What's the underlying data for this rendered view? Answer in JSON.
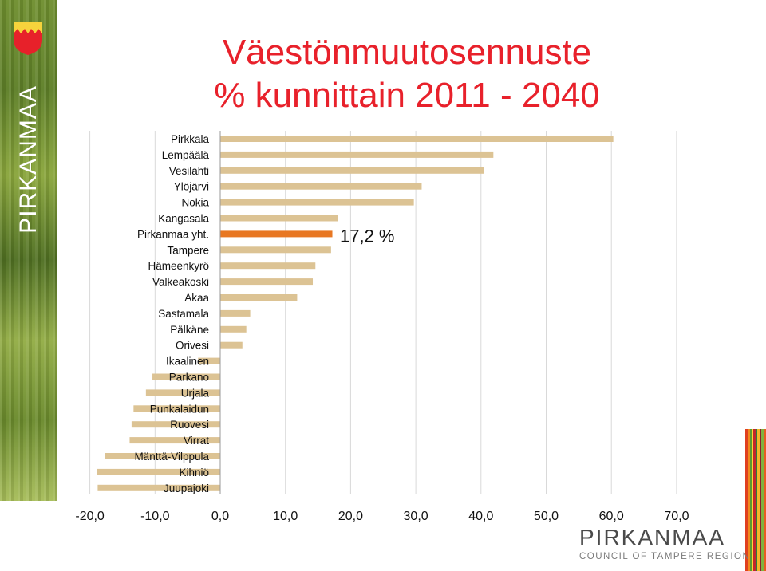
{
  "title_line1": "Väestönmuutosennuste",
  "title_line2": "% kunnittain 2011 - 2040",
  "vertical_brand": "PIRKANMAA",
  "logo": {
    "main": "PIRKANMAA",
    "sub": "COUNCIL OF TAMPERE REGION"
  },
  "colors": {
    "title": "#e8212b",
    "bar": "#dcc394",
    "highlight_bar": "#e87722",
    "grid": "#d9d9d9"
  },
  "icons": {
    "coat_of_arms": "pirkanmaa-coat-of-arms-icon"
  },
  "chart_data": {
    "type": "bar",
    "orientation": "horizontal",
    "title": "Väestönmuutosennuste % kunnittain 2011 - 2040",
    "categories": [
      "Pirkkala",
      "Lempäälä",
      "Vesilahti",
      "Ylöjärvi",
      "Nokia",
      "Kangasala",
      "Pirkanmaa yht.",
      "Tampere",
      "Hämeenkyrö",
      "Valkeakoski",
      "Akaa",
      "Sastamala",
      "Pälkäne",
      "Orivesi",
      "Ikaalinen",
      "Parkano",
      "Urjala",
      "Punkalaidun",
      "Ruovesi",
      "Virrat",
      "Mänttä-Vilppula",
      "Kihniö",
      "Juupajoki"
    ],
    "values": [
      60.3,
      41.9,
      40.5,
      30.9,
      29.7,
      18.0,
      17.2,
      17.0,
      14.6,
      14.2,
      11.8,
      4.6,
      4.0,
      3.4,
      -3.4,
      -10.4,
      -11.4,
      -13.3,
      -13.6,
      -13.9,
      -17.7,
      -18.9,
      -18.8
    ],
    "highlight": "Pirkanmaa yht.",
    "annotation": "17,2 %",
    "x_ticks": [
      "-20,0",
      "-10,0",
      "0,0",
      "10,0",
      "20,0",
      "30,0",
      "40,0",
      "50,0",
      "60,0",
      "70,0"
    ],
    "xlim": [
      -20,
      70
    ],
    "grid": true
  }
}
